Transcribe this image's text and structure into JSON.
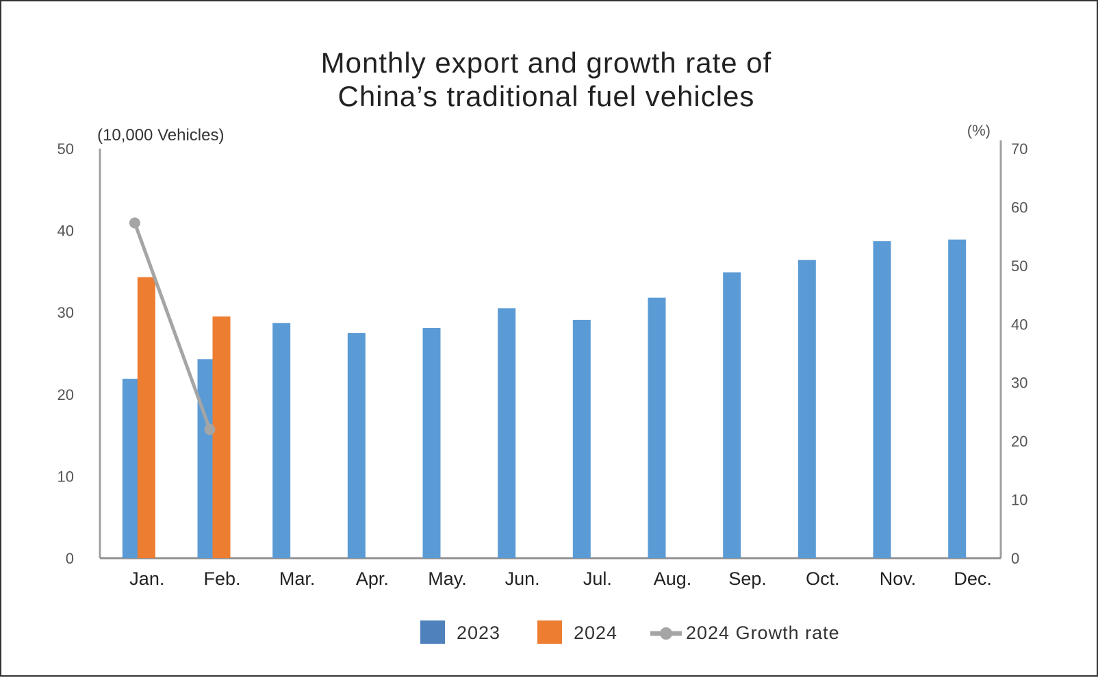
{
  "chart_data": {
    "type": "bar",
    "title_lines": [
      "Monthly export and growth rate of",
      "China’s traditional fuel vehicles"
    ],
    "ylabel_left": "(10,000 Vehicles)",
    "ylabel_right": "(%)",
    "ylim_left": [
      0,
      50
    ],
    "ylim_right": [
      0,
      70
    ],
    "yticks_left": [
      "0",
      "10",
      "20",
      "30",
      "40",
      "50"
    ],
    "yticks_right": [
      "0",
      "10",
      "20",
      "30",
      "40",
      "50",
      "60",
      "70"
    ],
    "categories": [
      "Jan.",
      "Feb.",
      "Mar.",
      "Apr.",
      "May.",
      "Jun.",
      "Jul.",
      "Aug.",
      "Sep.",
      "Oct.",
      "Nov.",
      "Dec."
    ],
    "series": [
      {
        "name": "2023",
        "type": "bar",
        "axis": "left",
        "color": "#5b9bd5",
        "values": [
          21.9,
          24.3,
          28.7,
          27.5,
          28.1,
          30.5,
          29.1,
          31.8,
          34.9,
          36.4,
          38.7,
          38.9
        ]
      },
      {
        "name": "2024",
        "type": "bar",
        "axis": "left",
        "color": "#ed7d31",
        "values": [
          34.3,
          29.5,
          null,
          null,
          null,
          null,
          null,
          null,
          null,
          null,
          null,
          null
        ]
      },
      {
        "name": "2024 Growth rate",
        "type": "line",
        "axis": "right",
        "color": "#a5a5a5",
        "values": [
          57.3,
          22.0,
          null,
          null,
          null,
          null,
          null,
          null,
          null,
          null,
          null,
          null
        ]
      }
    ],
    "legend_position": "bottom",
    "legend_colors": [
      "#4f81bd",
      "#ed7d31",
      "#a5a5a5"
    ],
    "grid": false
  }
}
